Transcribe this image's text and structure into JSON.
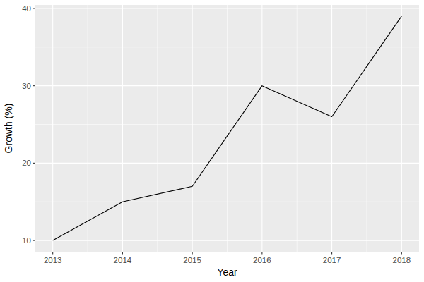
{
  "chart_data": {
    "type": "line",
    "x_label": "Year",
    "y_label": "Growth (%)",
    "x": [
      2013,
      2014,
      2015,
      2016,
      2017,
      2018
    ],
    "values": [
      10,
      15,
      17,
      30,
      26,
      39
    ],
    "color": "#000000",
    "xlim": [
      2012.75,
      2018.25
    ],
    "xticks": [
      2013,
      2014,
      2015,
      2016,
      2017,
      2018
    ],
    "ylim": [
      8.55,
      40.45
    ],
    "yticks": [
      10,
      20,
      30,
      40
    ],
    "grid": true
  }
}
